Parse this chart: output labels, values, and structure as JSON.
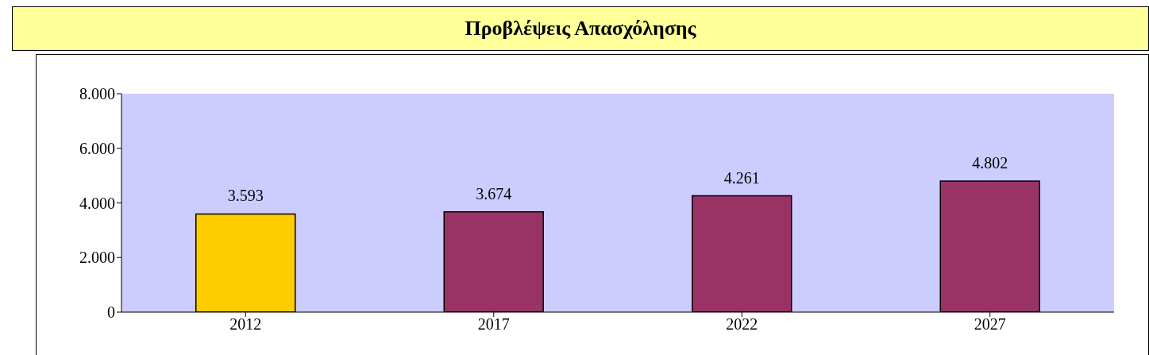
{
  "chart_data": {
    "type": "bar",
    "title": "Προβλέψεις Απασχόλησης",
    "categories": [
      "2012",
      "2017",
      "2022",
      "2027"
    ],
    "values": [
      3593,
      3674,
      4261,
      4802
    ],
    "value_labels": [
      "3.593",
      "3.674",
      "4.261",
      "4.802"
    ],
    "colors": [
      "#ffcc00",
      "#993366",
      "#993366",
      "#993366"
    ],
    "ylim": [
      0,
      8000
    ],
    "yticks": [
      0,
      {
        "value": 2000,
        "label": "2.000"
      },
      {
        "value": 4000,
        "label": "4.000"
      },
      {
        "value": 6000,
        "label": "6.000"
      },
      {
        "value": 8000,
        "label": "8.000"
      }
    ],
    "grid": false,
    "legend": false
  }
}
